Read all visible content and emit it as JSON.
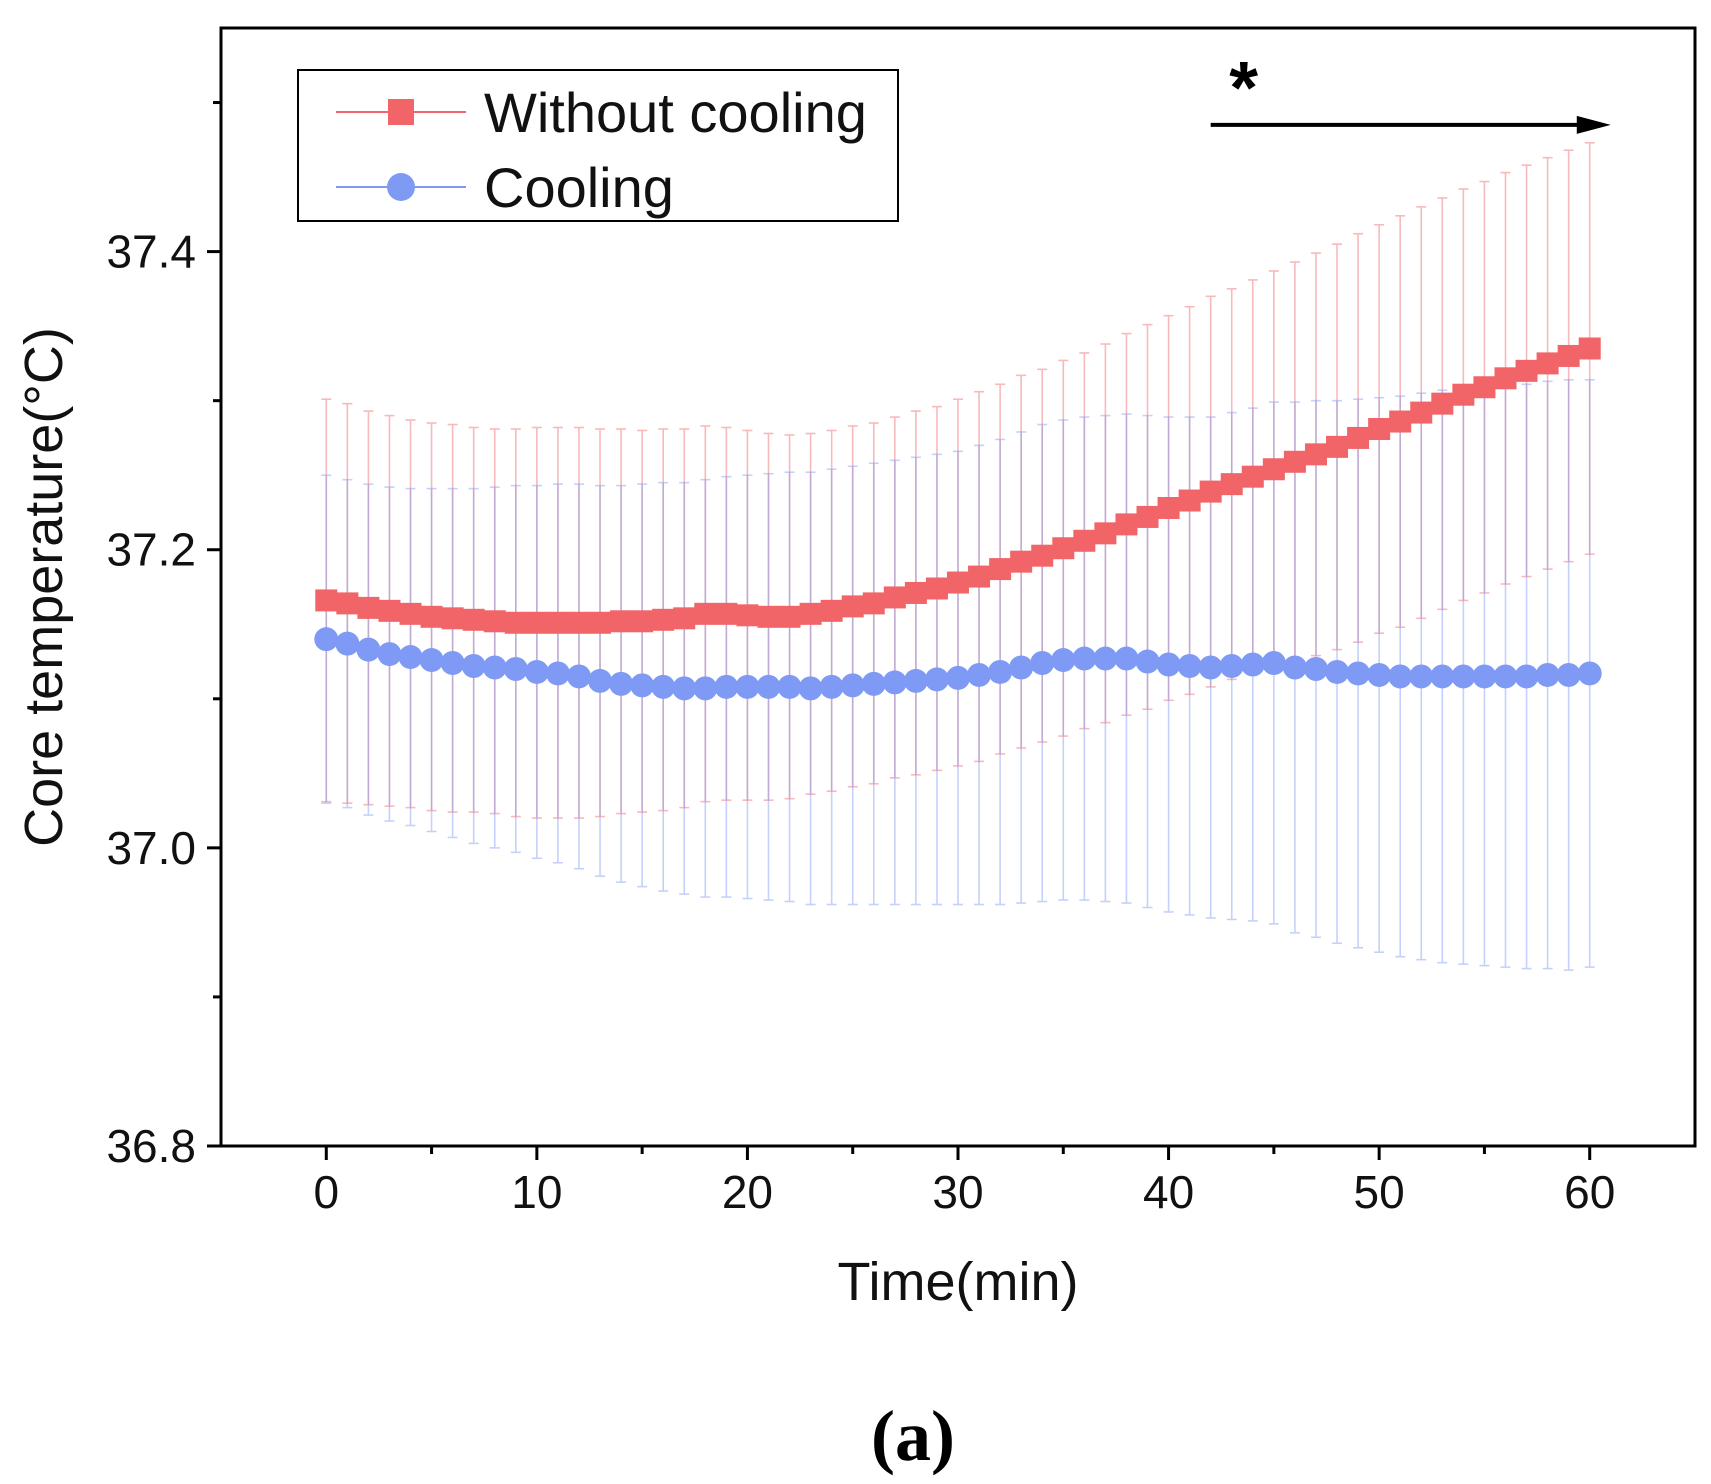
{
  "chart_data": {
    "type": "line",
    "title": "",
    "xlabel": "Time(min)",
    "ylabel": "Core temperature(°C)",
    "xlim": [
      -5,
      65
    ],
    "ylim": [
      36.8,
      37.55
    ],
    "x_ticks": [
      0,
      10,
      20,
      30,
      40,
      50,
      60
    ],
    "x_tick_labels": [
      "0",
      "10",
      "20",
      "30",
      "40",
      "50",
      "60"
    ],
    "y_ticks": [
      36.8,
      37.0,
      37.2,
      37.4
    ],
    "y_tick_labels": [
      "36.8",
      "37.0",
      "37.2",
      "37.4"
    ],
    "y_minor_ticks": [
      36.9,
      37.1,
      37.3,
      37.5
    ],
    "legend_position": "top-left",
    "x": [
      0,
      1,
      2,
      3,
      4,
      5,
      6,
      7,
      8,
      9,
      10,
      11,
      12,
      13,
      14,
      15,
      16,
      17,
      18,
      19,
      20,
      21,
      22,
      23,
      24,
      25,
      26,
      27,
      28,
      29,
      30,
      31,
      32,
      33,
      34,
      35,
      36,
      37,
      38,
      39,
      40,
      41,
      42,
      43,
      44,
      45,
      46,
      47,
      48,
      49,
      50,
      51,
      52,
      53,
      54,
      55,
      56,
      57,
      58,
      59,
      60
    ],
    "series": [
      {
        "name": "Without cooling",
        "color": "#f16568",
        "marker": "square",
        "values": [
          37.166,
          37.164,
          37.161,
          37.159,
          37.157,
          37.155,
          37.154,
          37.153,
          37.152,
          37.151,
          37.151,
          37.151,
          37.151,
          37.151,
          37.152,
          37.152,
          37.153,
          37.154,
          37.157,
          37.157,
          37.156,
          37.155,
          37.155,
          37.157,
          37.159,
          37.162,
          37.164,
          37.168,
          37.171,
          37.174,
          37.178,
          37.182,
          37.187,
          37.192,
          37.196,
          37.201,
          37.206,
          37.211,
          37.217,
          37.222,
          37.228,
          37.233,
          37.239,
          37.244,
          37.249,
          37.254,
          37.259,
          37.264,
          37.269,
          37.275,
          37.281,
          37.286,
          37.292,
          37.298,
          37.304,
          37.309,
          37.315,
          37.32,
          37.325,
          37.33,
          37.335
        ],
        "errors": [
          0.135,
          0.134,
          0.132,
          0.131,
          0.13,
          0.13,
          0.13,
          0.129,
          0.129,
          0.13,
          0.131,
          0.131,
          0.131,
          0.13,
          0.129,
          0.128,
          0.128,
          0.127,
          0.126,
          0.125,
          0.124,
          0.123,
          0.122,
          0.121,
          0.121,
          0.121,
          0.121,
          0.121,
          0.122,
          0.122,
          0.123,
          0.124,
          0.124,
          0.125,
          0.125,
          0.126,
          0.126,
          0.127,
          0.128,
          0.129,
          0.129,
          0.13,
          0.131,
          0.131,
          0.132,
          0.133,
          0.134,
          0.135,
          0.136,
          0.137,
          0.137,
          0.138,
          0.138,
          0.138,
          0.138,
          0.138,
          0.138,
          0.138,
          0.138,
          0.138,
          0.138
        ]
      },
      {
        "name": "Cooling",
        "color": "#7e9af4",
        "marker": "circle",
        "values": [
          37.14,
          37.137,
          37.133,
          37.13,
          37.128,
          37.126,
          37.124,
          37.122,
          37.121,
          37.12,
          37.118,
          37.117,
          37.115,
          37.112,
          37.11,
          37.109,
          37.108,
          37.107,
          37.107,
          37.108,
          37.108,
          37.108,
          37.108,
          37.107,
          37.108,
          37.109,
          37.11,
          37.111,
          37.112,
          37.113,
          37.114,
          37.116,
          37.118,
          37.121,
          37.124,
          37.126,
          37.127,
          37.127,
          37.127,
          37.125,
          37.123,
          37.122,
          37.121,
          37.122,
          37.123,
          37.124,
          37.121,
          37.12,
          37.118,
          37.117,
          37.116,
          37.115,
          37.115,
          37.115,
          37.115,
          37.115,
          37.115,
          37.115,
          37.116,
          37.116,
          37.117
        ],
        "errors": [
          0.11,
          0.11,
          0.111,
          0.112,
          0.113,
          0.115,
          0.117,
          0.119,
          0.121,
          0.123,
          0.125,
          0.127,
          0.129,
          0.131,
          0.133,
          0.135,
          0.137,
          0.138,
          0.14,
          0.141,
          0.142,
          0.143,
          0.144,
          0.145,
          0.146,
          0.147,
          0.148,
          0.149,
          0.15,
          0.151,
          0.152,
          0.154,
          0.156,
          0.158,
          0.16,
          0.161,
          0.162,
          0.163,
          0.164,
          0.165,
          0.166,
          0.167,
          0.168,
          0.17,
          0.172,
          0.175,
          0.178,
          0.18,
          0.182,
          0.184,
          0.186,
          0.188,
          0.19,
          0.192,
          0.193,
          0.194,
          0.195,
          0.196,
          0.197,
          0.198,
          0.197
        ]
      }
    ],
    "annotations": [
      {
        "text": "*",
        "from_x": 42,
        "to_x": 61,
        "y": 37.485,
        "kind": "significance-arrow"
      }
    ],
    "panel_label": "(a)"
  }
}
